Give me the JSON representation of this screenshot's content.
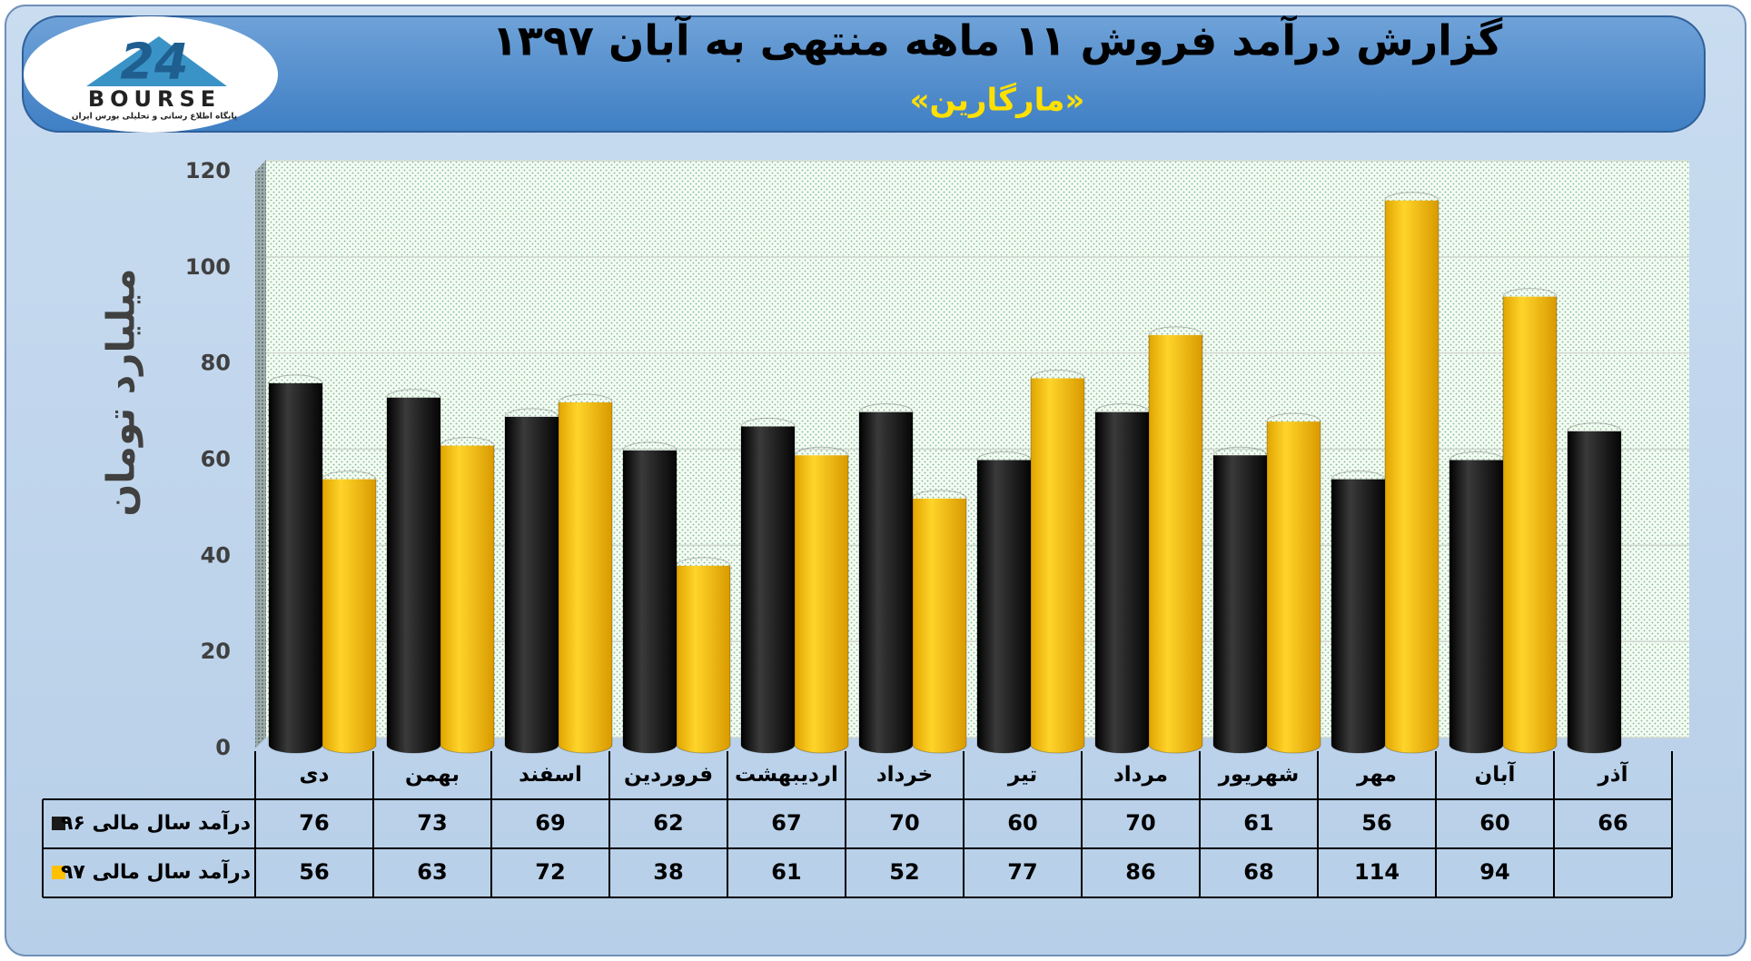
{
  "logo": {
    "number": "24",
    "brand": "BOURSE",
    "tagline": "پایگاه اطلاع رسانی و تحلیلی بورس ایران"
  },
  "chart_data": {
    "type": "bar",
    "title": "گزارش درآمد فروش ۱۱ ماهه منتهی به آبان ۱۳۹۷",
    "subtitle": "«مارگارین»",
    "y_label": "میلیارد تومان",
    "categories": [
      "دی",
      "بهمن",
      "اسفند",
      "فروردین",
      "اردیبهشت",
      "خرداد",
      "تیر",
      "مرداد",
      "شهریور",
      "مهر",
      "آبان",
      "آذر"
    ],
    "series": [
      {
        "name": "درآمد سال مالی ۹۶",
        "color": "#1a1a1a",
        "values": [
          76,
          73,
          69,
          62,
          67,
          70,
          60,
          70,
          61,
          56,
          60,
          66
        ]
      },
      {
        "name": "درآمد سال مالی ۹۷",
        "color": "#ffc000",
        "values": [
          56,
          63,
          72,
          38,
          61,
          52,
          77,
          86,
          68,
          114,
          94,
          null
        ]
      }
    ],
    "ylim": [
      0,
      120
    ],
    "yticks": [
      0,
      20,
      40,
      60,
      80,
      100,
      120
    ],
    "grid": true
  }
}
